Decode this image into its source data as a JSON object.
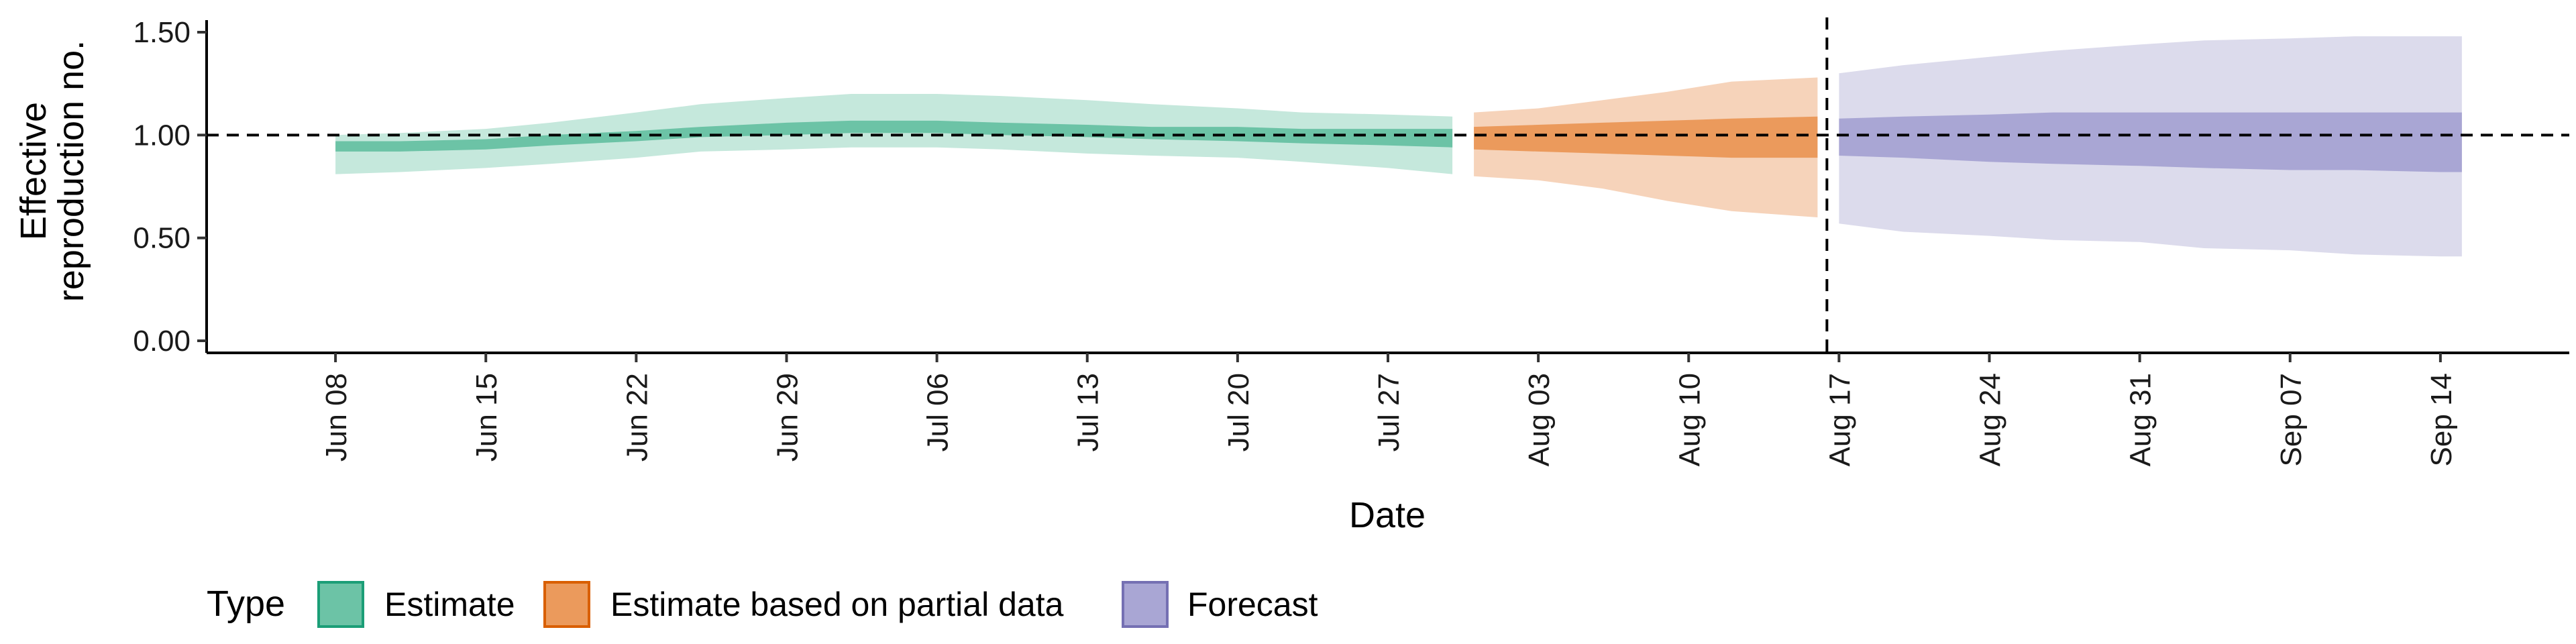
{
  "chart_data": {
    "type": "area",
    "xlabel": "Date",
    "ylabel_lines": [
      "Effective",
      "reproduction no."
    ],
    "ylim": [
      0,
      1.55
    ],
    "y_ticks": [
      0.0,
      0.5,
      1.0,
      1.5
    ],
    "y_tick_labels": [
      "0.00",
      "0.50",
      "1.00",
      "1.50"
    ],
    "x_ticks": [
      "2020-06-08",
      "2020-06-15",
      "2020-06-22",
      "2020-06-29",
      "2020-07-06",
      "2020-07-13",
      "2020-07-20",
      "2020-07-27",
      "2020-08-03",
      "2020-08-10",
      "2020-08-17",
      "2020-08-24",
      "2020-08-31",
      "2020-09-07",
      "2020-09-14"
    ],
    "x_tick_labels": [
      "Jun 08",
      "Jun 15",
      "Jun 22",
      "Jun 29",
      "Jul 06",
      "Jul 13",
      "Jul 20",
      "Jul 27",
      "Aug 03",
      "Aug 10",
      "Aug 17",
      "Aug 24",
      "Aug 31",
      "Sep 07",
      "Sep 14"
    ],
    "xlim": [
      "2020-06-02",
      "2020-09-20"
    ],
    "hline_y": 1.0,
    "vline_x": "2020-08-16",
    "legend": {
      "title": "Type",
      "position": "bottom",
      "entries": [
        {
          "label": "Estimate",
          "fill": "#6cc3a6",
          "border": "#1b9e77"
        },
        {
          "label": "Estimate based on partial data",
          "fill": "#eb9a5c",
          "border": "#d95f02"
        },
        {
          "label": "Forecast",
          "fill": "#a9a6d4",
          "border": "#7570b3"
        }
      ]
    },
    "series": [
      {
        "name": "Estimate",
        "color_outer": "#c5e8dc",
        "color_inner": "#6cc3a6",
        "x": [
          "2020-06-08",
          "2020-06-11",
          "2020-06-15",
          "2020-06-18",
          "2020-06-22",
          "2020-06-25",
          "2020-06-29",
          "2020-07-02",
          "2020-07-06",
          "2020-07-09",
          "2020-07-13",
          "2020-07-16",
          "2020-07-20",
          "2020-07-23",
          "2020-07-27",
          "2020-07-30"
        ],
        "lower90": [
          0.81,
          0.82,
          0.84,
          0.86,
          0.89,
          0.92,
          0.93,
          0.94,
          0.94,
          0.93,
          0.91,
          0.9,
          0.89,
          0.87,
          0.84,
          0.81
        ],
        "upper90": [
          1.0,
          1.01,
          1.03,
          1.06,
          1.11,
          1.15,
          1.18,
          1.2,
          1.2,
          1.19,
          1.17,
          1.15,
          1.13,
          1.11,
          1.1,
          1.09
        ],
        "lower50": [
          0.92,
          0.92,
          0.93,
          0.95,
          0.97,
          0.99,
          1.0,
          1.01,
          1.01,
          1.0,
          0.99,
          0.98,
          0.97,
          0.96,
          0.95,
          0.94
        ],
        "upper50": [
          0.97,
          0.97,
          0.98,
          1.0,
          1.02,
          1.04,
          1.06,
          1.07,
          1.07,
          1.06,
          1.05,
          1.04,
          1.04,
          1.03,
          1.03,
          1.03
        ]
      },
      {
        "name": "Estimate based on partial data",
        "color_outer": "#f6d3ba",
        "color_inner": "#eb9a5c",
        "x": [
          "2020-07-31",
          "2020-08-03",
          "2020-08-06",
          "2020-08-09",
          "2020-08-12",
          "2020-08-16"
        ],
        "lower90": [
          0.8,
          0.78,
          0.74,
          0.68,
          0.63,
          0.6
        ],
        "upper90": [
          1.11,
          1.13,
          1.17,
          1.21,
          1.26,
          1.28
        ],
        "lower50": [
          0.93,
          0.92,
          0.91,
          0.9,
          0.89,
          0.89
        ],
        "upper50": [
          1.04,
          1.05,
          1.06,
          1.07,
          1.08,
          1.09
        ]
      },
      {
        "name": "Forecast",
        "color_outer": "#dcdbec",
        "color_inner": "#a9a6d4",
        "x": [
          "2020-08-17",
          "2020-08-20",
          "2020-08-24",
          "2020-08-27",
          "2020-08-31",
          "2020-09-03",
          "2020-09-07",
          "2020-09-10",
          "2020-09-14",
          "2020-09-15"
        ],
        "lower90": [
          0.57,
          0.53,
          0.51,
          0.49,
          0.48,
          0.45,
          0.44,
          0.42,
          0.41,
          0.41
        ],
        "upper90": [
          1.3,
          1.34,
          1.38,
          1.41,
          1.44,
          1.46,
          1.47,
          1.48,
          1.48,
          1.48
        ],
        "lower50": [
          0.9,
          0.89,
          0.87,
          0.86,
          0.85,
          0.84,
          0.83,
          0.83,
          0.82,
          0.82
        ],
        "upper50": [
          1.08,
          1.09,
          1.1,
          1.11,
          1.11,
          1.11,
          1.11,
          1.11,
          1.11,
          1.11
        ]
      }
    ]
  }
}
